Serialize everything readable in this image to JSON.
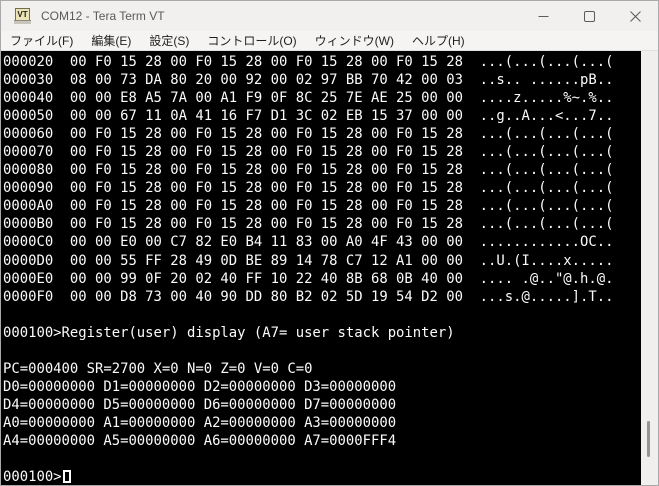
{
  "window": {
    "title": "COM12 - Tera Term VT",
    "icon_text": "VT",
    "controls": {
      "minimize": "minimize",
      "maximize": "maximize",
      "close": "close"
    }
  },
  "menu_bar": {
    "items": [
      {
        "label": "ファイル(F)"
      },
      {
        "label": "編集(E)"
      },
      {
        "label": "設定(S)"
      },
      {
        "label": "コントロール(O)"
      },
      {
        "label": "ウィンドウ(W)"
      },
      {
        "label": "ヘルプ(H)"
      }
    ]
  },
  "terminal": {
    "background_color": "#000000",
    "foreground_color": "#fbfbfb",
    "lines": [
      "000020  00 F0 15 28 00 F0 15 28 00 F0 15 28 00 F0 15 28  ...(...(...(...(",
      "000030  08 00 73 DA 80 20 00 92 00 02 97 BB 70 42 00 03  ..s.. ......pB..",
      "000040  00 00 E8 A5 7A 00 A1 F9 0F 8C 25 7E AE 25 00 00  ....z.....%~.%..",
      "000050  00 00 67 11 0A 41 16 F7 D1 3C 02 EB 15 37 00 00  ..g..A...<...7..",
      "000060  00 F0 15 28 00 F0 15 28 00 F0 15 28 00 F0 15 28  ...(...(...(...(",
      "000070  00 F0 15 28 00 F0 15 28 00 F0 15 28 00 F0 15 28  ...(...(...(...(",
      "000080  00 F0 15 28 00 F0 15 28 00 F0 15 28 00 F0 15 28  ...(...(...(...(",
      "000090  00 F0 15 28 00 F0 15 28 00 F0 15 28 00 F0 15 28  ...(...(...(...(",
      "0000A0  00 F0 15 28 00 F0 15 28 00 F0 15 28 00 F0 15 28  ...(...(...(...(",
      "0000B0  00 F0 15 28 00 F0 15 28 00 F0 15 28 00 F0 15 28  ...(...(...(...(",
      "0000C0  00 00 E0 00 C7 82 E0 B4 11 83 00 A0 4F 43 00 00  ............OC..",
      "0000D0  00 00 55 FF 28 49 0D BE 89 14 78 C7 12 A1 00 00  ..U.(I....x.....",
      "0000E0  00 00 99 0F 20 02 40 FF 10 22 40 8B 68 0B 40 00  .... .@..\"@.h.@.",
      "0000F0  00 00 D8 73 00 40 90 DD 80 B2 02 5D 19 54 D2 00  ...s.@.....].T..",
      "",
      "000100>Register(user) display (A7= user stack pointer)",
      "",
      "PC=000400 SR=2700 X=0 N=0 Z=0 V=0 C=0",
      "D0=00000000 D1=00000000 D2=00000000 D3=00000000",
      "D4=00000000 D5=00000000 D6=00000000 D7=00000000",
      "A0=00000000 A1=00000000 A2=00000000 A3=00000000",
      "A4=00000000 A5=00000000 A6=00000000 A7=0000FFF4",
      ""
    ],
    "prompt": "000100>",
    "cursor_style": "hollow-block"
  },
  "scrollbar": {
    "orientation": "vertical",
    "thumb_position": "near-bottom"
  }
}
